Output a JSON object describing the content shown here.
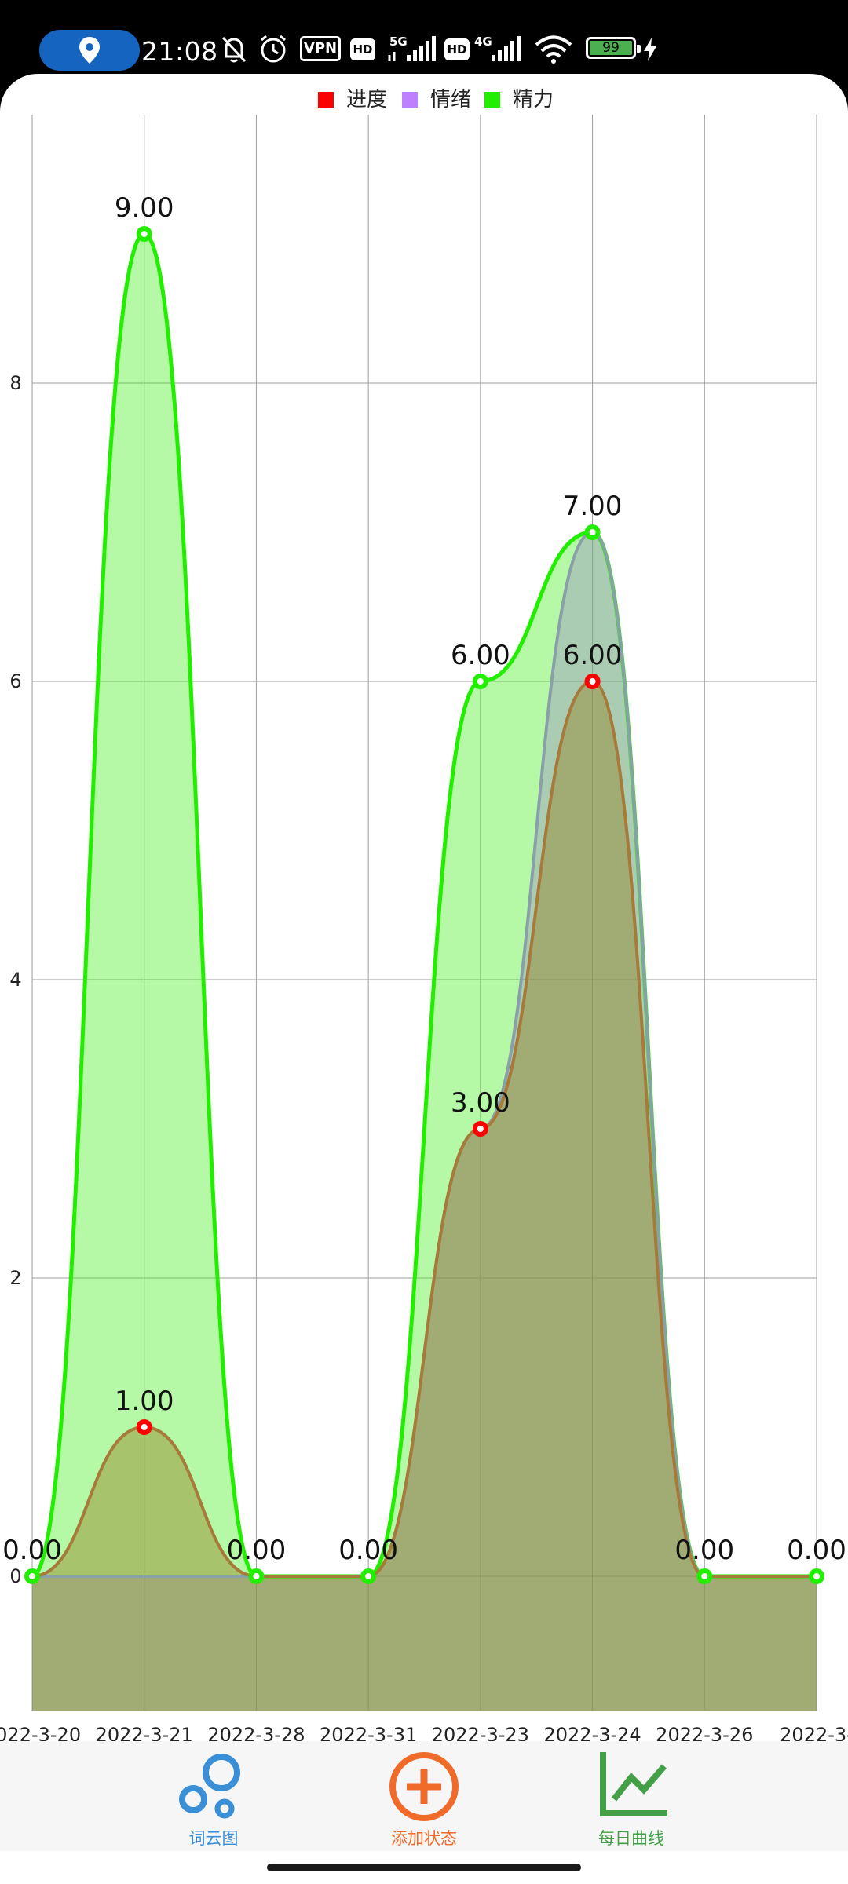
{
  "status_bar": {
    "time": "21:08",
    "vpn": "VPN",
    "hd1": "HD",
    "net1": "5G",
    "hd2": "HD",
    "net2": "4G",
    "battery": "99"
  },
  "chart_data": {
    "type": "area",
    "categories": [
      "2022-3-20",
      "2022-3-21",
      "2022-3-28",
      "2022-3-31",
      "2022-3-23",
      "2022-3-24",
      "2022-3-26",
      "2022-3-"
    ],
    "series": [
      {
        "name": "进度",
        "color": "#ff0000",
        "values": [
          0,
          1,
          0,
          0,
          3,
          6,
          0,
          0
        ]
      },
      {
        "name": "情绪",
        "color": "#bf80ff",
        "values": [
          0,
          0,
          0,
          0,
          3,
          7,
          0,
          0
        ]
      },
      {
        "name": "精力",
        "color": "#22ee00",
        "values": [
          0,
          9,
          0,
          0,
          6,
          7,
          0,
          0
        ]
      }
    ],
    "value_labels": [
      {
        "text": "0.00",
        "cat": 0,
        "y": 0
      },
      {
        "text": "9.00",
        "cat": 1,
        "y": 9
      },
      {
        "text": "1.00",
        "cat": 1,
        "y": 1
      },
      {
        "text": "0.00",
        "cat": 2,
        "y": 0
      },
      {
        "text": "0.00",
        "cat": 3,
        "y": 0
      },
      {
        "text": "6.00",
        "cat": 4,
        "y": 6
      },
      {
        "text": "3.00",
        "cat": 4,
        "y": 3
      },
      {
        "text": "7.00",
        "cat": 5,
        "y": 7
      },
      {
        "text": "6.00",
        "cat": 5,
        "y": 6
      },
      {
        "text": "0.00",
        "cat": 6,
        "y": 0
      },
      {
        "text": "0.00",
        "cat": 7,
        "y": 0
      }
    ],
    "y_ticks": [
      0,
      2,
      4,
      6,
      8
    ],
    "ylim": [
      -0.9,
      9.8
    ],
    "grid": true,
    "legend": "top-center",
    "title": "",
    "xlabel": "",
    "ylabel": ""
  },
  "bottom_nav": {
    "items": [
      {
        "label": "词云图",
        "color": "#3a8fd6",
        "icon": "bubbles-icon"
      },
      {
        "label": "添加状态",
        "color": "#f06a2a",
        "icon": "add-circle-icon"
      },
      {
        "label": "每日曲线",
        "color": "#43a047",
        "icon": "line-chart-icon"
      }
    ]
  }
}
